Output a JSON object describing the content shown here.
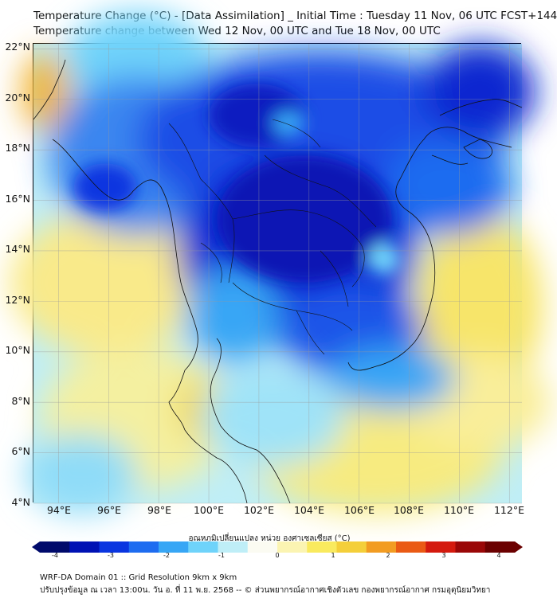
{
  "header": {
    "title_line1": "Temperature Change (°C) - [Data Assimilation] _ Initial Time : Tuesday 11 Nov, 06 UTC FCST+144",
    "title_line2": "Temperature change between Wed 12 Nov, 00 UTC and Tue 18 Nov, 00 UTC"
  },
  "map": {
    "lat_labels": [
      "22°N",
      "20°N",
      "18°N",
      "16°N",
      "14°N",
      "12°N",
      "10°N",
      "8°N",
      "6°N",
      "4°N"
    ],
    "lon_labels": [
      "94°E",
      "96°E",
      "98°E",
      "100°E",
      "102°E",
      "104°E",
      "106°E",
      "108°E",
      "110°E",
      "112°E"
    ],
    "lat_range": [
      4,
      22.2
    ],
    "lon_range": [
      93,
      112.5
    ]
  },
  "colorbar": {
    "title": "อุณหภูมิเปลี่ยนแปลง หน่วย องศาเซลเซียส (°C)",
    "ticks": [
      "-4",
      "-3",
      "-2",
      "-1",
      "0",
      "1",
      "2",
      "3",
      "4"
    ],
    "colors": [
      "#000a6b",
      "#0012b4",
      "#0a35e0",
      "#1e6cf0",
      "#37a6f5",
      "#6fd3fa",
      "#bfeef7",
      "#fbfbf2",
      "#fbf4b2",
      "#f9ea5e",
      "#f4cf3a",
      "#f29c22",
      "#ea5a14",
      "#d41a0e",
      "#9a0707",
      "#6b0000"
    ]
  },
  "footer": {
    "line1": "WRF-DA Domain 01 :: Grid Resolution 9km x 9km",
    "line2": "ปรับปรุงข้อมูล ณ เวลา 13:00น. วัน อ. ที่ 11 พ.ย. 2568 -- © ส่วนพยากรณ์อากาศเชิงตัวเลข กองพยากรณ์อากาศ กรมอุตุนิยมวิทยา"
  }
}
